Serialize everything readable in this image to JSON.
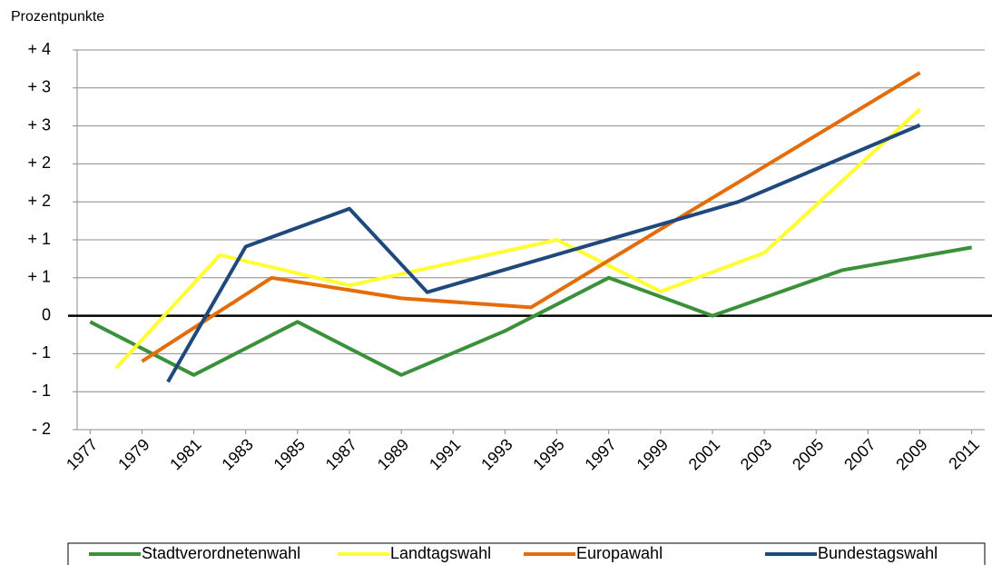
{
  "chart_data": {
    "type": "line",
    "y_axis_label": "Prozentpunkte",
    "xlim": [
      1976.5,
      2011.5
    ],
    "xticks": [
      1977,
      1979,
      1981,
      1983,
      1985,
      1987,
      1989,
      1991,
      1993,
      1995,
      1997,
      1999,
      2001,
      2003,
      2005,
      2007,
      2009,
      2011
    ],
    "ylim": [
      -1.5,
      3.5
    ],
    "yticks": [
      {
        "value": 3.5,
        "label": "+ 4"
      },
      {
        "value": 3,
        "label": "+ 3"
      },
      {
        "value": 2.5,
        "label": "+ 3"
      },
      {
        "value": 2,
        "label": "+ 2"
      },
      {
        "value": 1.5,
        "label": "+ 2"
      },
      {
        "value": 1,
        "label": "+ 1"
      },
      {
        "value": 0.5,
        "label": "+ 1"
      },
      {
        "value": 0,
        "label": "0"
      },
      {
        "value": -0.5,
        "label": "- 1"
      },
      {
        "value": -1,
        "label": "- 1"
      },
      {
        "value": -1.5,
        "label": "- 2"
      }
    ],
    "grid": true,
    "legend": "bottom",
    "series": [
      {
        "name": "Stadtverordnetenwahl",
        "color": "#3a913a",
        "x": [
          1977,
          1981,
          1985,
          1989,
          1993,
          1997,
          2001,
          2006,
          2011
        ],
        "values": [
          -0.08,
          -0.78,
          -0.08,
          -0.78,
          -0.2,
          0.5,
          0,
          0.6,
          0.9
        ]
      },
      {
        "name": "Landtagswahl",
        "color": "#ffff33",
        "x": [
          1978,
          1982,
          1987,
          1995,
          1999,
          2003,
          2009
        ],
        "values": [
          -0.69,
          0.8,
          0.4,
          1.0,
          0.32,
          0.83,
          2.72
        ]
      },
      {
        "name": "Europawahl",
        "color": "#e46c0a",
        "x": [
          1979,
          1984,
          1989,
          1994,
          2009
        ],
        "values": [
          -0.6,
          0.5,
          0.23,
          0.11,
          3.2
        ]
      },
      {
        "name": "Bundestagswahl",
        "color": "#1f497d",
        "x": [
          1980,
          1983,
          1987,
          1990,
          2002,
          2009
        ],
        "values": [
          -0.87,
          0.91,
          1.41,
          0.31,
          1.5,
          2.51
        ]
      }
    ]
  }
}
